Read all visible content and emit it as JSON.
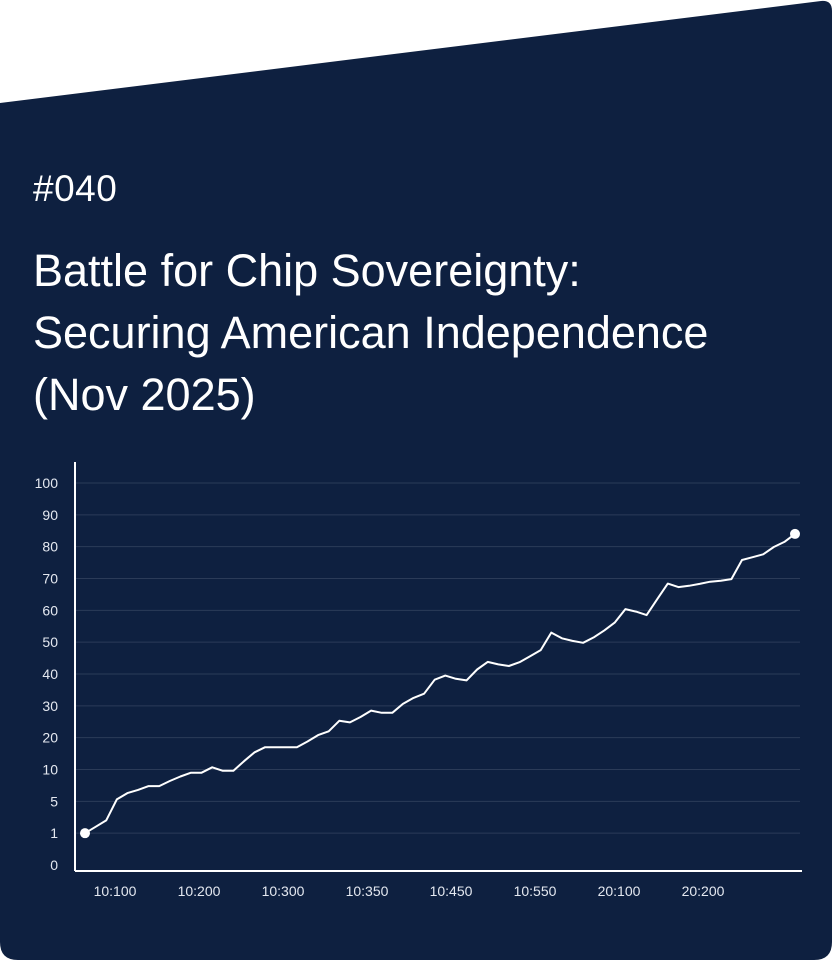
{
  "issue_number": "#040",
  "title_lines": [
    "Battle for Chip Sovereignty:",
    "Securing American Independence",
    "(Nov 2025)"
  ],
  "colors": {
    "card_background": "#0e2040",
    "page_background": "#ffffff",
    "line": "#ffffff",
    "gridline": "#2b3b58",
    "axis": "#ffffff",
    "text": "#ffffff"
  },
  "chart_data": {
    "type": "line",
    "title": "",
    "xlabel": "",
    "ylabel": "",
    "grid": true,
    "y_ticks": [
      "0",
      "1",
      "5",
      "10",
      "20",
      "30",
      "40",
      "50",
      "60",
      "70",
      "80",
      "90",
      "100"
    ],
    "x_ticks": [
      "10:100",
      "10:200",
      "10:300",
      "10:350",
      "10:450",
      "10:550",
      "20:100",
      "20:200"
    ],
    "y_values": [
      1,
      1.8,
      2.6,
      5.3,
      6.3,
      6.8,
      7.4,
      7.4,
      8.2,
      8.9,
      9.5,
      9.5,
      10.7,
      9.8,
      9.8,
      12.6,
      15.4,
      17,
      17,
      17,
      17,
      18.8,
      20.8,
      22,
      25.3,
      24.8,
      26.5,
      28.5,
      27.8,
      27.8,
      30.6,
      32.5,
      33.8,
      38.2,
      39.5,
      38.5,
      38,
      41.4,
      43.8,
      43,
      42.5,
      43.7,
      45.6,
      47.5,
      53,
      51.2,
      50.4,
      49.8,
      51.5,
      53.7,
      56.2,
      60.4,
      59.6,
      58.5,
      63.5,
      68.4,
      67.3,
      67.7,
      68.3,
      69,
      69.3,
      69.8,
      75.8,
      76.7,
      77.6,
      79.9,
      81.5,
      84
    ]
  }
}
